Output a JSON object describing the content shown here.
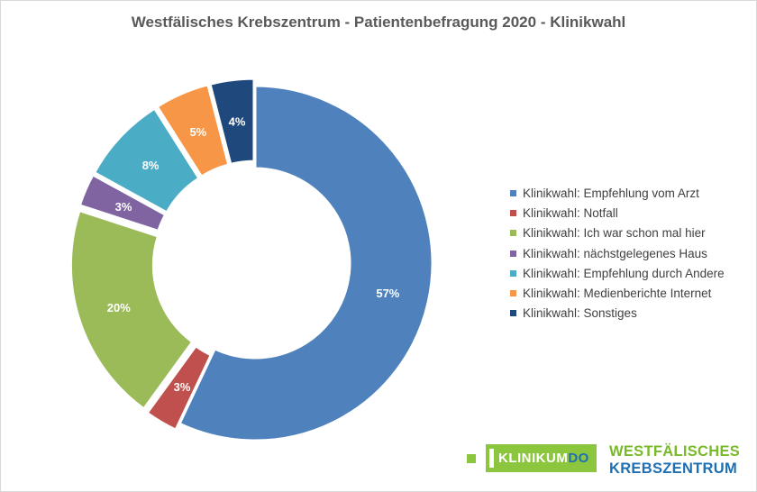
{
  "title": "Westfälisches Krebszentrum - Patientenbefragung 2020 - Klinikwahl",
  "chart_data": {
    "type": "pie",
    "title": "Westfälisches Krebszentrum - Patientenbefragung 2020 - Klinikwahl",
    "style": "donut",
    "legend_position": "right",
    "slices": [
      {
        "label": "Klinikwahl: Empfehlung vom Arzt",
        "value": 57,
        "data_label": "57%",
        "color": "#4f81bd"
      },
      {
        "label": "Klinikwahl: Notfall",
        "value": 3,
        "data_label": "3%",
        "color": "#c0504d"
      },
      {
        "label": "Klinikwahl: Ich war schon mal hier",
        "value": 20,
        "data_label": "20%",
        "color": "#9bbb59"
      },
      {
        "label": "Klinikwahl: nächstgelegenes Haus",
        "value": 3,
        "data_label": "3%",
        "color": "#8064a2"
      },
      {
        "label": "Klinikwahl: Empfehlung durch Andere",
        "value": 8,
        "data_label": "8%",
        "color": "#4bacc6"
      },
      {
        "label": "Klinikwahl: Medienberichte Internet",
        "value": 5,
        "data_label": "5%",
        "color": "#f79646"
      },
      {
        "label": "Klinikwahl: Sonstiges",
        "value": 4,
        "data_label": "4%",
        "color": "#1f497d"
      }
    ]
  },
  "logo": {
    "badge_main": "KLINIKUM",
    "badge_accent": "DO",
    "line1": "WESTFÄLISCHES",
    "line2": "KREBSZENTRUM"
  }
}
